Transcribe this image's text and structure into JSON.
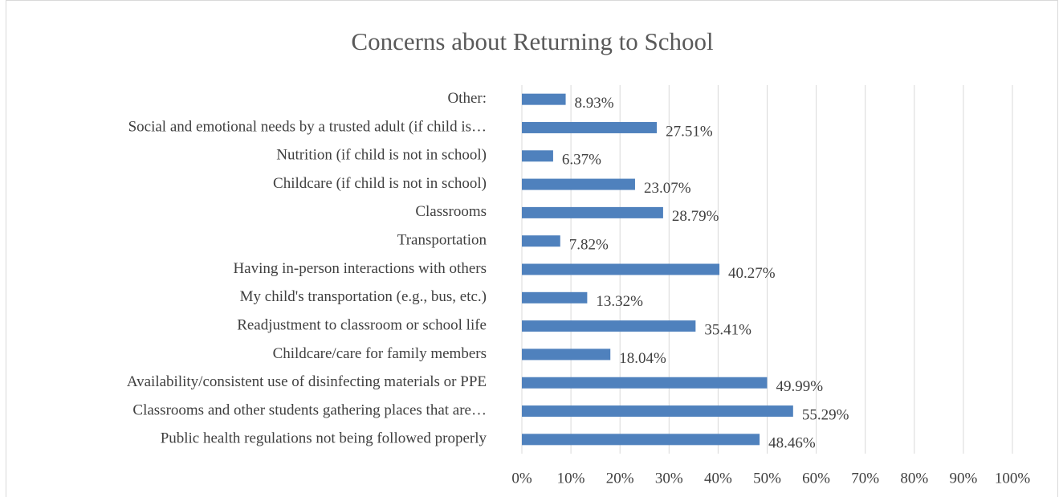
{
  "chart_data": {
    "type": "hbar",
    "title": "Concerns about Returning to School",
    "categories": [
      "Other:",
      "Social and emotional needs by a trusted adult (if child is…",
      "Nutrition (if child is not in school)",
      "Childcare (if child is not in school)",
      "Classrooms",
      "Transportation",
      "Having in-person interactions with others",
      "My child's transportation (e.g., bus, etc.)",
      "Readjustment to classroom or school life",
      "Childcare/care for family members",
      "Availability/consistent use of disinfecting materials or PPE",
      "Classrooms and other students gathering places that are…",
      "Public health regulations not being followed properly"
    ],
    "values": [
      8.93,
      27.51,
      6.37,
      23.07,
      28.79,
      7.82,
      40.27,
      13.32,
      35.41,
      18.04,
      49.99,
      55.29,
      48.46
    ],
    "value_labels": [
      "8.93%",
      "27.51%",
      "6.37%",
      "23.07%",
      "28.79%",
      "7.82%",
      "40.27%",
      "13.32%",
      "35.41%",
      "18.04%",
      "49.99%",
      "55.29%",
      "48.46%"
    ],
    "color": "#4f81bd",
    "xlim": [
      0,
      100
    ],
    "xticks": [
      {
        "value": 0,
        "label": "0%"
      },
      {
        "value": 10,
        "label": "10%"
      },
      {
        "value": 20,
        "label": "20%"
      },
      {
        "value": 30,
        "label": "30%"
      },
      {
        "value": 40,
        "label": "40%"
      },
      {
        "value": 50,
        "label": "50%"
      },
      {
        "value": 60,
        "label": "60%"
      },
      {
        "value": 70,
        "label": "70%"
      },
      {
        "value": 80,
        "label": "80%"
      },
      {
        "value": 90,
        "label": "90%"
      },
      {
        "value": 100,
        "label": "100%"
      }
    ],
    "grid": true
  }
}
